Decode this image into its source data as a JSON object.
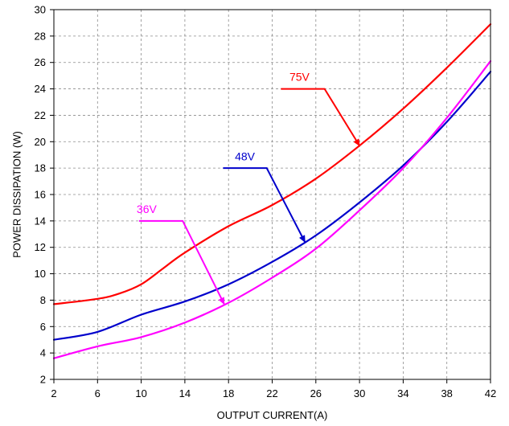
{
  "chart_data": {
    "type": "line",
    "title": "",
    "xlabel": "OUTPUT CURRENT(A)",
    "ylabel": "POWER DISSIPATION (W)",
    "xlim": [
      2,
      42
    ],
    "ylim": [
      2,
      30
    ],
    "xticks": [
      2,
      6,
      10,
      14,
      18,
      22,
      26,
      30,
      34,
      38,
      42
    ],
    "yticks": [
      2,
      4,
      6,
      8,
      10,
      12,
      14,
      16,
      18,
      20,
      22,
      24,
      26,
      28,
      30
    ],
    "grid": true,
    "series": [
      {
        "name": "75V",
        "color": "#ff0000",
        "x": [
          2,
          6,
          8,
          10,
          12,
          14,
          18,
          22,
          26,
          30,
          34,
          38,
          42
        ],
        "y": [
          7.7,
          8.1,
          8.5,
          9.2,
          10.4,
          11.6,
          13.6,
          15.2,
          17.2,
          19.7,
          22.5,
          25.6,
          28.9
        ]
      },
      {
        "name": "48V",
        "color": "#0000cc",
        "x": [
          2,
          6,
          10,
          14,
          18,
          22,
          26,
          30,
          34,
          38,
          42
        ],
        "y": [
          5.0,
          5.6,
          6.9,
          7.9,
          9.2,
          10.9,
          12.9,
          15.4,
          18.2,
          21.5,
          25.3
        ]
      },
      {
        "name": "36V",
        "color": "#ff00ff",
        "x": [
          2,
          6,
          10,
          14,
          18,
          22,
          26,
          30,
          34,
          38,
          42
        ],
        "y": [
          3.6,
          4.5,
          5.2,
          6.3,
          7.8,
          9.7,
          11.9,
          14.8,
          18.0,
          21.8,
          26.1
        ]
      }
    ],
    "annotations": [
      {
        "text": "75V",
        "color": "#ff0000",
        "label_at": [
          24.5,
          24.6
        ],
        "line": [
          [
            22.8,
            24
          ],
          [
            26.8,
            24
          ]
        ],
        "arrow_tip": [
          30,
          19.7
        ]
      },
      {
        "text": "48V",
        "color": "#0000cc",
        "label_at": [
          19.5,
          18.6
        ],
        "line": [
          [
            17.5,
            18
          ],
          [
            21.5,
            18
          ]
        ],
        "arrow_tip": [
          25,
          12.4
        ]
      },
      {
        "text": "36V",
        "color": "#ff00ff",
        "label_at": [
          10.5,
          14.6
        ],
        "line": [
          [
            9.8,
            14
          ],
          [
            13.8,
            14
          ]
        ],
        "arrow_tip": [
          17.6,
          7.7
        ]
      }
    ]
  }
}
